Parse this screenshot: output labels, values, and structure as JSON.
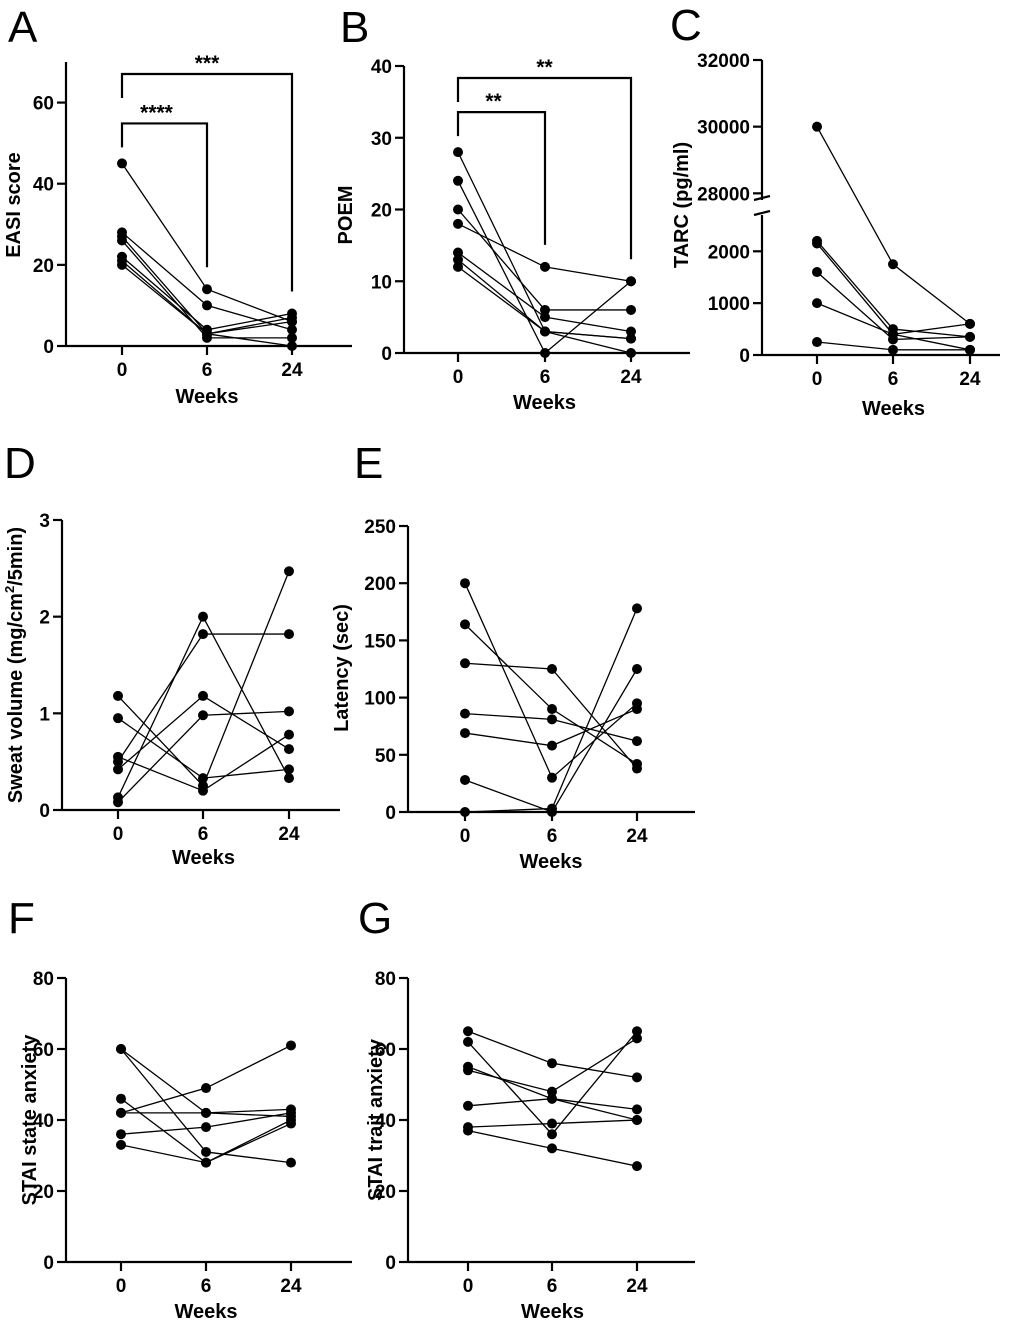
{
  "chart_data": [
    {
      "panel": "A",
      "type": "line",
      "categories": [
        "0",
        "6",
        "24"
      ],
      "ylabel": "EASI score",
      "xlabel": "Weeks",
      "ylim": [
        0,
        70
      ],
      "yticks": [
        "0",
        "20",
        "40",
        "60"
      ],
      "series": [
        {
          "values": [
            45,
            14,
            6
          ]
        },
        {
          "values": [
            28,
            10,
            4
          ]
        },
        {
          "values": [
            27,
            3,
            7
          ]
        },
        {
          "values": [
            26,
            2,
            2
          ]
        },
        {
          "values": [
            22,
            4,
            8
          ]
        },
        {
          "values": [
            21,
            3,
            6
          ]
        },
        {
          "values": [
            20,
            3,
            0
          ]
        }
      ],
      "significance": [
        {
          "from": "0",
          "to": "6",
          "label": "****"
        },
        {
          "from": "0",
          "to": "24",
          "label": "***"
        }
      ]
    },
    {
      "panel": "B",
      "type": "line",
      "categories": [
        "0",
        "6",
        "24"
      ],
      "ylabel": "POEM",
      "xlabel": "Weeks",
      "ylim": [
        0,
        40
      ],
      "yticks": [
        "0",
        "10",
        "20",
        "30",
        "40"
      ],
      "series": [
        {
          "values": [
            28,
            3,
            2
          ]
        },
        {
          "values": [
            24,
            0,
            10
          ]
        },
        {
          "values": [
            20,
            6,
            6
          ]
        },
        {
          "values": [
            18,
            12,
            10
          ]
        },
        {
          "values": [
            14,
            5,
            3
          ]
        },
        {
          "values": [
            13,
            3,
            0
          ]
        },
        {
          "values": [
            12,
            3,
            2
          ]
        }
      ],
      "significance": [
        {
          "from": "0",
          "to": "6",
          "label": "**"
        },
        {
          "from": "0",
          "to": "24",
          "label": "**"
        }
      ]
    },
    {
      "panel": "C",
      "type": "line",
      "categories": [
        "0",
        "6",
        "24"
      ],
      "ylabel": "TARC  (pg/ml)",
      "xlabel": "Weeks",
      "broken_axis": {
        "lower": [
          0,
          2700
        ],
        "upper": [
          27800,
          32000
        ]
      },
      "yticks": [
        "0",
        "1000",
        "2000",
        "28000",
        "30000",
        "32000"
      ],
      "series": [
        {
          "values": [
            30000,
            1750,
            600
          ]
        },
        {
          "values": [
            2200,
            500,
            350
          ]
        },
        {
          "values": [
            2150,
            400,
            600
          ]
        },
        {
          "values": [
            1600,
            300,
            350
          ]
        },
        {
          "values": [
            1000,
            400,
            100
          ]
        },
        {
          "values": [
            250,
            100,
            100
          ]
        }
      ]
    },
    {
      "panel": "D",
      "type": "line",
      "categories": [
        "0",
        "6",
        "24"
      ],
      "ylabel": "Sweat  volume (mg/cm²/5min)",
      "xlabel": "Weeks",
      "ylim": [
        0,
        3
      ],
      "yticks": [
        "0",
        "1",
        "2",
        "3"
      ],
      "series": [
        {
          "values": [
            1.18,
            0.25,
            2.47
          ]
        },
        {
          "values": [
            0.95,
            0.33,
            0.42
          ]
        },
        {
          "values": [
            0.55,
            0.2,
            0.78
          ]
        },
        {
          "values": [
            0.5,
            1.82,
            1.82
          ]
        },
        {
          "values": [
            0.42,
            1.18,
            0.63
          ]
        },
        {
          "values": [
            0.13,
            2.0,
            0.33
          ]
        },
        {
          "values": [
            0.08,
            0.98,
            1.02
          ]
        }
      ]
    },
    {
      "panel": "E",
      "type": "line",
      "categories": [
        "0",
        "6",
        "24"
      ],
      "ylabel": "Latency (sec)",
      "xlabel": "Weeks",
      "ylim": [
        0,
        250
      ],
      "yticks": [
        "0",
        "50",
        "100",
        "150",
        "200",
        "250"
      ],
      "series": [
        {
          "values": [
            200,
            30,
            95
          ]
        },
        {
          "values": [
            164,
            90,
            42
          ]
        },
        {
          "values": [
            130,
            125,
            38
          ]
        },
        {
          "values": [
            86,
            81,
            62
          ]
        },
        {
          "values": [
            69,
            58,
            90
          ]
        },
        {
          "values": [
            28,
            0,
            125
          ]
        },
        {
          "values": [
            0,
            3,
            178
          ]
        }
      ]
    },
    {
      "panel": "F",
      "type": "line",
      "categories": [
        "0",
        "6",
        "24"
      ],
      "ylabel": "STAI  state anxiety",
      "xlabel": "Weeks",
      "ylim": [
        0,
        80
      ],
      "yticks": [
        "0",
        "20",
        "40",
        "60",
        "80"
      ],
      "series": [
        {
          "values": [
            60,
            42,
            41
          ]
        },
        {
          "values": [
            60,
            31,
            28
          ]
        },
        {
          "values": [
            46,
            28,
            39
          ]
        },
        {
          "values": [
            42,
            49,
            61
          ]
        },
        {
          "values": [
            42,
            42,
            43
          ]
        },
        {
          "values": [
            36,
            38,
            42
          ]
        },
        {
          "values": [
            33,
            28,
            40
          ]
        }
      ]
    },
    {
      "panel": "G",
      "type": "line",
      "categories": [
        "0",
        "6",
        "24"
      ],
      "ylabel": "STAI  trait anxiety",
      "xlabel": "Weeks",
      "ylim": [
        0,
        80
      ],
      "yticks": [
        "0",
        "20",
        "40",
        "60",
        "80"
      ],
      "series": [
        {
          "values": [
            65,
            56,
            52
          ]
        },
        {
          "values": [
            62,
            36,
            65
          ]
        },
        {
          "values": [
            55,
            46,
            43
          ]
        },
        {
          "values": [
            54,
            48,
            63
          ]
        },
        {
          "values": [
            44,
            46,
            40
          ]
        },
        {
          "values": [
            38,
            39,
            40
          ]
        },
        {
          "values": [
            37,
            32,
            27
          ]
        }
      ]
    }
  ]
}
